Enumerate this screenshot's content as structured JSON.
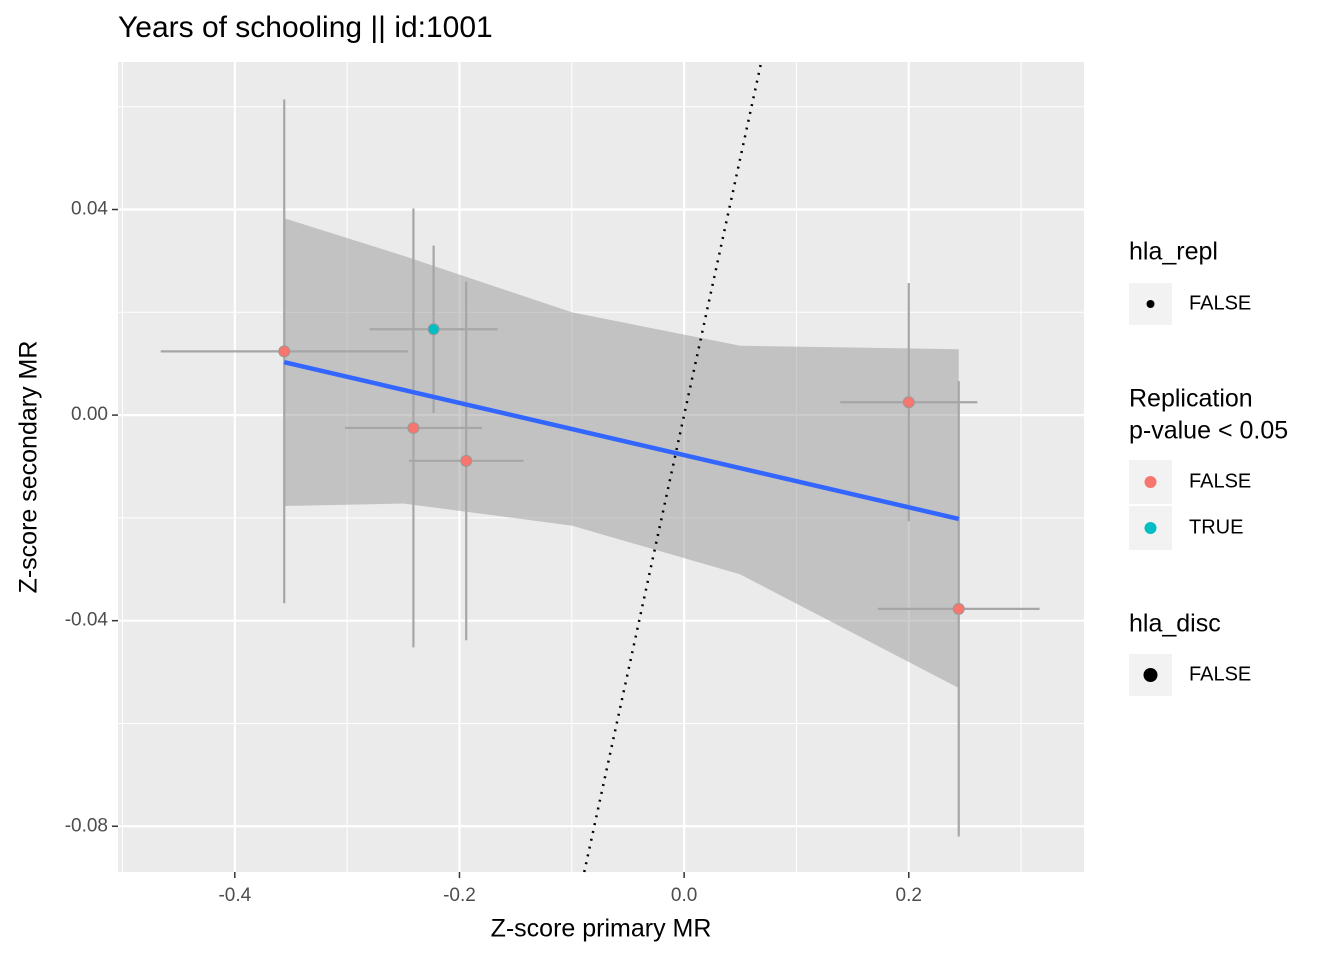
{
  "chart_data": {
    "type": "scatter",
    "title": "Years of schooling || id:1001",
    "x_label": "Z-score primary MR",
    "y_label": "Z-score secondary MR",
    "xlim": [
      -0.504,
      0.356
    ],
    "ylim": [
      -0.0889,
      0.0687
    ],
    "xticks": [
      -0.4,
      -0.2,
      {
        "value": 0,
        "label": "0.0"
      },
      0.2
    ],
    "yticks": [
      -0.08,
      -0.04,
      {
        "value": 0,
        "label": "0.00"
      },
      0.04
    ],
    "grid": true,
    "series": [
      {
        "name": "FALSE",
        "color": "#F8766D",
        "x": [
          -0.356,
          -0.241,
          -0.194,
          0.2,
          0.2445
        ],
        "y": [
          0.0124,
          -0.0025,
          -0.0089,
          0.0025,
          -0.0377
        ],
        "xerr": [
          0.11,
          0.061,
          0.051,
          0.061,
          0.072
        ],
        "yerr": [
          0.049,
          0.0427,
          0.0349,
          0.0232,
          0.0443
        ]
      },
      {
        "name": "TRUE",
        "color": "#00BFC4",
        "x": [
          -0.223
        ],
        "y": [
          0.0167
        ],
        "xerr": [
          0.057
        ],
        "yerr": [
          0.0163
        ]
      }
    ],
    "fit": {
      "color": "#3366FF",
      "x": [
        -0.356,
        0.2445
      ],
      "y": [
        0.0103,
        -0.0202
      ]
    },
    "ribbon": {
      "x": [
        -0.356,
        -0.25,
        -0.1,
        0.05,
        0.2445
      ],
      "upper": [
        0.0383,
        0.031,
        0.02,
        0.0135,
        0.0128
      ],
      "lower": [
        -0.0177,
        -0.0172,
        -0.0215,
        -0.031,
        -0.0531
      ]
    },
    "identity_line": {
      "x": [
        -0.0889,
        0.0687
      ],
      "y": [
        -0.0889,
        0.0687
      ]
    },
    "legend_hla_repl": {
      "title": "hla_repl",
      "label": "FALSE"
    },
    "color_legend_title": [
      "Replication",
      "p-value < 0.05"
    ],
    "legend_hla_disc": {
      "title": "hla_disc",
      "label": "FALSE"
    }
  }
}
